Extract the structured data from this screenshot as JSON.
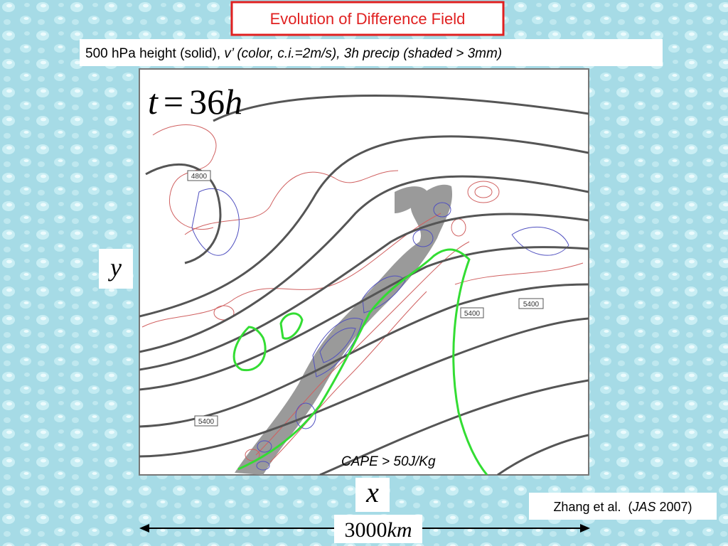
{
  "header": {
    "title": "Evolution of Difference Field",
    "subtitle": {
      "plain": "500 hPa height (solid), ",
      "italic": "v’ (color, c.i.=2m/s), 3h precip (shaded > 3mm)"
    }
  },
  "figure": {
    "time_label": {
      "var": "t",
      "eq": "=",
      "num": "36",
      "unit": "h"
    },
    "contour_labels": [
      "4800",
      "5400",
      "5400",
      "5400"
    ],
    "annotation": "CAPE > 50J/Kg",
    "y_axis": "y",
    "x_axis": "x",
    "scale": {
      "number": "3000",
      "unit": "km"
    }
  },
  "citation": {
    "authors": "Zhang et al.  (",
    "journal": "JAS",
    "year": " 2007)"
  }
}
